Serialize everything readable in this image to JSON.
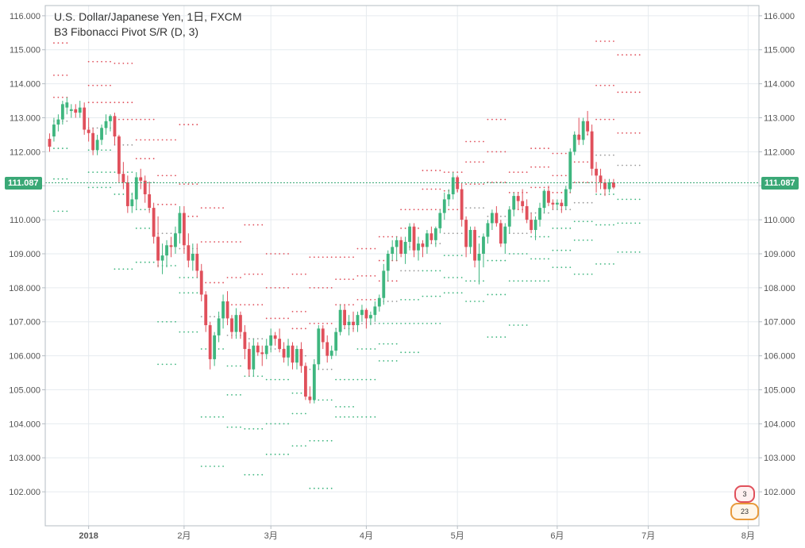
{
  "chart_title": "U.S. Dollar/Japanese Yen, 1日, FXCM",
  "indicator_title": "B3 Fibonacci Pivot S/R (D, 3)",
  "current_price": "111.087",
  "badges": {
    "top": "3",
    "bottom": "23"
  },
  "colors": {
    "up": "#3fb67f",
    "down": "#e0505b",
    "grid": "#e6ebef",
    "price_line": "#3aa876",
    "resistance_dot": "#e0505b",
    "support_dot": "#3fb67f",
    "pivot_dot": "#999999"
  },
  "chart_data": {
    "type": "candlestick",
    "title": "U.S. Dollar/Japanese Yen, 1日, FXCM",
    "subtitle": "B3 Fibonacci Pivot S/R (D, 3)",
    "y_axis": {
      "ticks": [
        "116.000",
        "115.000",
        "114.000",
        "113.000",
        "112.000",
        "111.000",
        "110.000",
        "109.000",
        "108.000",
        "107.000",
        "106.000",
        "105.000",
        "104.000",
        "103.000",
        "102.000"
      ],
      "range": [
        101.0,
        116.3
      ],
      "sides": "left-right",
      "current_value": 111.087
    },
    "x_axis": {
      "ticks": [
        {
          "label": "2018",
          "index": 9,
          "bold": true
        },
        {
          "label": "2月",
          "index": 31
        },
        {
          "label": "3月",
          "index": 51
        },
        {
          "label": "4月",
          "index": 73
        },
        {
          "label": "5月",
          "index": 94
        },
        {
          "label": "6月",
          "index": 117
        },
        {
          "label": "7月",
          "index": 138
        },
        {
          "label": "8月",
          "index": 161
        }
      ],
      "start_index": -1,
      "end_index": 163.5
    },
    "grid": true,
    "candles": [
      [
        112.38,
        112.54,
        112.0,
        112.15
      ],
      [
        112.45,
        113.0,
        112.3,
        112.8
      ],
      [
        112.8,
        113.1,
        112.6,
        112.95
      ],
      [
        112.95,
        113.5,
        112.8,
        113.4
      ],
      [
        113.3,
        113.6,
        113.1,
        113.45
      ],
      [
        113.2,
        113.4,
        113.0,
        113.25
      ],
      [
        113.25,
        113.4,
        113.0,
        113.15
      ],
      [
        113.15,
        113.5,
        113.0,
        113.3
      ],
      [
        113.3,
        113.45,
        112.5,
        112.65
      ],
      [
        112.65,
        113.0,
        112.3,
        112.55
      ],
      [
        112.55,
        112.7,
        111.9,
        112.05
      ],
      [
        112.05,
        112.5,
        111.9,
        112.35
      ],
      [
        112.35,
        112.8,
        112.2,
        112.7
      ],
      [
        112.7,
        113.1,
        112.5,
        112.9
      ],
      [
        112.9,
        113.1,
        112.6,
        113.05
      ],
      [
        113.05,
        113.15,
        112.2,
        112.45
      ],
      [
        112.45,
        112.5,
        111.1,
        111.35
      ],
      [
        111.35,
        111.7,
        110.9,
        111.1
      ],
      [
        111.1,
        111.3,
        110.2,
        110.4
      ],
      [
        110.4,
        110.8,
        110.2,
        110.6
      ],
      [
        110.6,
        111.4,
        110.3,
        111.25
      ],
      [
        111.25,
        111.5,
        110.9,
        111.15
      ],
      [
        111.15,
        111.3,
        110.5,
        110.75
      ],
      [
        110.75,
        111.1,
        110.2,
        110.35
      ],
      [
        110.35,
        110.5,
        109.3,
        109.5
      ],
      [
        109.5,
        110.1,
        108.6,
        108.8
      ],
      [
        108.8,
        109.3,
        108.4,
        108.95
      ],
      [
        108.95,
        109.4,
        108.6,
        109.25
      ],
      [
        109.25,
        109.5,
        108.9,
        109.2
      ],
      [
        109.2,
        109.8,
        109.0,
        109.6
      ],
      [
        109.6,
        110.4,
        109.3,
        110.2
      ],
      [
        110.2,
        110.4,
        109.0,
        109.25
      ],
      [
        109.25,
        109.6,
        108.6,
        108.8
      ],
      [
        108.8,
        109.3,
        108.5,
        109.0
      ],
      [
        109.0,
        109.3,
        108.3,
        108.5
      ],
      [
        108.5,
        108.7,
        107.6,
        107.8
      ],
      [
        107.8,
        107.9,
        106.7,
        106.9
      ],
      [
        106.9,
        107.0,
        105.6,
        105.9
      ],
      [
        105.9,
        106.7,
        105.7,
        106.6
      ],
      [
        106.6,
        107.3,
        106.4,
        107.1
      ],
      [
        107.1,
        107.8,
        106.8,
        107.6
      ],
      [
        107.6,
        107.9,
        106.9,
        107.1
      ],
      [
        107.1,
        107.2,
        106.5,
        106.7
      ],
      [
        106.7,
        107.4,
        106.5,
        107.2
      ],
      [
        107.2,
        107.3,
        106.5,
        106.7
      ],
      [
        106.7,
        106.9,
        105.9,
        106.2
      ],
      [
        106.2,
        106.4,
        105.4,
        105.6
      ],
      [
        105.6,
        106.5,
        105.4,
        106.3
      ],
      [
        106.3,
        106.4,
        106.0,
        106.1
      ],
      [
        106.1,
        106.3,
        105.7,
        106.05
      ],
      [
        106.05,
        106.5,
        105.9,
        106.3
      ],
      [
        106.3,
        106.8,
        106.1,
        106.6
      ],
      [
        106.6,
        106.7,
        106.3,
        106.5
      ],
      [
        106.5,
        106.8,
        106.1,
        106.2
      ],
      [
        106.2,
        106.4,
        105.8,
        105.95
      ],
      [
        105.95,
        106.5,
        105.7,
        106.3
      ],
      [
        106.3,
        106.4,
        105.6,
        105.8
      ],
      [
        105.8,
        106.3,
        105.6,
        106.2
      ],
      [
        106.2,
        106.4,
        105.5,
        105.7
      ],
      [
        105.7,
        105.8,
        104.7,
        104.8
      ],
      [
        104.8,
        105.1,
        104.6,
        104.7
      ],
      [
        104.7,
        105.9,
        104.6,
        105.75
      ],
      [
        105.75,
        106.9,
        105.6,
        106.8
      ],
      [
        106.8,
        106.9,
        106.2,
        106.4
      ],
      [
        106.4,
        106.6,
        105.8,
        106.0
      ],
      [
        106.0,
        106.3,
        105.9,
        106.15
      ],
      [
        106.15,
        106.8,
        106.0,
        106.7
      ],
      [
        106.7,
        107.5,
        106.6,
        107.35
      ],
      [
        107.35,
        107.5,
        106.8,
        106.9
      ],
      [
        106.9,
        107.2,
        106.6,
        107.0
      ],
      [
        107.0,
        107.3,
        106.7,
        106.9
      ],
      [
        106.9,
        107.3,
        106.7,
        107.2
      ],
      [
        107.2,
        107.5,
        107.0,
        107.35
      ],
      [
        107.35,
        107.4,
        106.8,
        107.1
      ],
      [
        107.1,
        107.3,
        106.9,
        107.2
      ],
      [
        107.2,
        107.6,
        107.0,
        107.45
      ],
      [
        107.45,
        107.8,
        107.3,
        107.7
      ],
      [
        107.7,
        108.7,
        107.5,
        108.5
      ],
      [
        108.5,
        109.1,
        108.2,
        109.0
      ],
      [
        109.0,
        109.4,
        108.8,
        109.2
      ],
      [
        109.2,
        109.5,
        108.8,
        109.4
      ],
      [
        109.4,
        109.5,
        108.9,
        109.0
      ],
      [
        109.0,
        109.5,
        108.7,
        109.35
      ],
      [
        109.35,
        109.9,
        109.1,
        109.8
      ],
      [
        109.8,
        109.9,
        108.9,
        109.1
      ],
      [
        109.1,
        109.5,
        108.8,
        109.3
      ],
      [
        109.3,
        109.4,
        108.9,
        109.2
      ],
      [
        109.2,
        109.7,
        109.0,
        109.6
      ],
      [
        109.6,
        109.8,
        109.3,
        109.4
      ],
      [
        109.4,
        109.8,
        109.2,
        109.75
      ],
      [
        109.75,
        110.3,
        109.6,
        110.2
      ],
      [
        110.2,
        110.8,
        110.0,
        110.6
      ],
      [
        110.6,
        110.9,
        110.4,
        110.75
      ],
      [
        110.75,
        111.4,
        110.6,
        111.25
      ],
      [
        111.25,
        111.3,
        110.8,
        110.9
      ],
      [
        110.9,
        111.1,
        109.8,
        110.0
      ],
      [
        110.0,
        110.1,
        108.9,
        109.2
      ],
      [
        109.2,
        109.8,
        109.0,
        109.7
      ],
      [
        109.7,
        109.8,
        108.6,
        108.8
      ],
      [
        108.8,
        109.3,
        108.1,
        109.0
      ],
      [
        109.0,
        109.6,
        108.6,
        109.5
      ],
      [
        109.5,
        110.0,
        109.3,
        109.9
      ],
      [
        109.9,
        110.3,
        109.7,
        110.2
      ],
      [
        110.2,
        110.4,
        109.8,
        109.9
      ],
      [
        109.9,
        110.0,
        109.2,
        109.3
      ],
      [
        109.3,
        109.9,
        109.0,
        109.8
      ],
      [
        109.8,
        110.4,
        109.6,
        110.3
      ],
      [
        110.3,
        110.8,
        110.1,
        110.7
      ],
      [
        110.7,
        110.8,
        110.3,
        110.55
      ],
      [
        110.55,
        110.9,
        110.2,
        110.4
      ],
      [
        110.4,
        110.6,
        109.9,
        110.0
      ],
      [
        110.0,
        110.2,
        109.6,
        109.7
      ],
      [
        109.7,
        110.1,
        109.4,
        110.0
      ],
      [
        110.0,
        110.5,
        109.8,
        110.35
      ],
      [
        110.35,
        110.9,
        110.2,
        110.85
      ],
      [
        110.85,
        111.0,
        110.4,
        110.5
      ],
      [
        110.5,
        110.6,
        110.3,
        110.45
      ],
      [
        110.45,
        110.6,
        110.3,
        110.5
      ],
      [
        110.5,
        110.6,
        110.2,
        110.4
      ],
      [
        110.4,
        111.0,
        110.3,
        110.9
      ],
      [
        110.9,
        112.1,
        110.8,
        112.0
      ],
      [
        112.0,
        112.6,
        111.9,
        112.5
      ],
      [
        112.5,
        113.0,
        112.2,
        112.35
      ],
      [
        112.35,
        113.0,
        112.2,
        112.9
      ],
      [
        112.9,
        113.2,
        112.5,
        112.6
      ],
      [
        112.6,
        112.8,
        111.3,
        111.5
      ],
      [
        111.5,
        111.7,
        110.8,
        111.3
      ],
      [
        111.3,
        111.5,
        110.9,
        111.1
      ],
      [
        111.1,
        111.2,
        110.7,
        110.9
      ],
      [
        110.9,
        111.2,
        110.8,
        111.1
      ],
      [
        111.1,
        111.2,
        110.9,
        110.95
      ]
    ],
    "pivot_levels": [
      {
        "from": 1,
        "to": 4,
        "r3": 115.2,
        "r2": 114.25,
        "r1": 113.6,
        "p": 112.9,
        "s1": 112.1,
        "s2": 111.2,
        "s3": 110.25
      },
      {
        "from": 9,
        "to": 14,
        "r3": 114.65,
        "r2": 113.95,
        "r1": 113.45,
        "p": 112.7,
        "s1": 112.05,
        "s2": 111.4,
        "s3": 110.95
      },
      {
        "from": 15,
        "to": 19,
        "r3": 114.6,
        "r2": 113.45,
        "r1": 112.95,
        "p": 112.2,
        "s1": 111.4,
        "s2": 110.75,
        "s3": 108.55
      },
      {
        "from": 20,
        "to": 24,
        "r3": 112.95,
        "r2": 112.35,
        "r1": 111.8,
        "p": 111.1,
        "s1": 110.3,
        "s2": 109.75,
        "s3": 108.75
      },
      {
        "from": 25,
        "to": 29,
        "r3": 112.35,
        "r2": 111.3,
        "r1": 110.45,
        "p": 109.6,
        "s1": 108.65,
        "s2": 107.0,
        "s3": 105.75
      },
      {
        "from": 30,
        "to": 34,
        "r3": 112.8,
        "r2": 111.05,
        "r1": 110.1,
        "p": 109.15,
        "s1": 108.3,
        "s2": 107.85,
        "s3": 106.7
      },
      {
        "from": 35,
        "to": 40,
        "r3": 110.35,
        "r2": 109.35,
        "r1": 108.15,
        "p": 107.15,
        "s1": 106.2,
        "s2": 104.2,
        "s3": 102.75
      },
      {
        "from": 41,
        "to": 44,
        "r3": 109.35,
        "r2": 108.3,
        "r1": 107.5,
        "p": 106.6,
        "s1": 105.7,
        "s2": 104.85,
        "s3": 103.9
      },
      {
        "from": 45,
        "to": 49,
        "r3": 109.85,
        "r2": 108.4,
        "r1": 107.5,
        "p": 106.5,
        "s1": 105.4,
        "s2": 103.85,
        "s3": 102.5
      },
      {
        "from": 50,
        "to": 55,
        "r3": 109.0,
        "r2": 108.0,
        "r1": 107.1,
        "p": 106.2,
        "s1": 105.3,
        "s2": 104.0,
        "s3": 103.1
      },
      {
        "from": 56,
        "to": 59,
        "r3": 108.4,
        "r2": 107.3,
        "r1": 106.8,
        "p": 106.0,
        "s1": 104.9,
        "s2": 104.3,
        "s3": 103.35
      },
      {
        "from": 60,
        "to": 65,
        "r3": 108.9,
        "r2": 108.0,
        "r1": 106.95,
        "p": 105.6,
        "s1": 104.7,
        "s2": 103.5,
        "s3": 102.1
      },
      {
        "from": 66,
        "to": 70,
        "r3": 108.9,
        "r2": 108.25,
        "r1": 107.5,
        "p": 106.8,
        "s1": 105.3,
        "s2": 104.2,
        "s3": 104.5
      },
      {
        "from": 71,
        "to": 75,
        "r3": 109.15,
        "r2": 108.35,
        "r1": 107.65,
        "p": 106.95,
        "s1": 106.2,
        "s2": 105.3,
        "s3": 104.2
      },
      {
        "from": 76,
        "to": 80,
        "r3": 109.5,
        "r2": 108.8,
        "r1": 108.2,
        "p": 107.6,
        "s1": 106.95,
        "s2": 106.35,
        "s3": 105.85
      },
      {
        "from": 81,
        "to": 85,
        "r3": 110.3,
        "r2": 109.75,
        "r1": 109.2,
        "p": 108.5,
        "s1": 107.65,
        "s2": 106.95,
        "s3": 106.1
      },
      {
        "from": 86,
        "to": 90,
        "r3": 111.45,
        "r2": 110.9,
        "r1": 110.3,
        "p": 109.3,
        "s1": 108.5,
        "s2": 107.75,
        "s3": 106.95
      },
      {
        "from": 91,
        "to": 95,
        "r3": 111.4,
        "r2": 110.85,
        "r1": 110.3,
        "p": 109.6,
        "s1": 108.95,
        "s2": 108.3,
        "s3": 107.85
      },
      {
        "from": 96,
        "to": 100,
        "r3": 112.3,
        "r2": 111.7,
        "r1": 111.05,
        "p": 110.35,
        "s1": 109.5,
        "s2": 108.2,
        "s3": 107.6
      },
      {
        "from": 101,
        "to": 105,
        "r3": 112.95,
        "r2": 112.0,
        "r1": 111.1,
        "p": 110.1,
        "s1": 108.8,
        "s2": 107.8,
        "s3": 106.55
      },
      {
        "from": 106,
        "to": 110,
        "r3": 111.4,
        "r2": 110.8,
        "r1": 110.3,
        "p": 109.6,
        "s1": 109.0,
        "s2": 108.2,
        "s3": 106.9
      },
      {
        "from": 111,
        "to": 115,
        "r3": 112.1,
        "r2": 111.55,
        "r1": 110.95,
        "p": 110.2,
        "s1": 109.5,
        "s2": 108.85,
        "s3": 108.2
      },
      {
        "from": 116,
        "to": 120,
        "r3": 111.95,
        "r2": 111.3,
        "r1": 110.8,
        "p": 110.3,
        "s1": 109.75,
        "s2": 109.1,
        "s3": 108.6
      },
      {
        "from": 121,
        "to": 125,
        "r3": 112.5,
        "r2": 111.7,
        "r1": 111.1,
        "p": 110.5,
        "s1": 109.95,
        "s2": 109.4,
        "s3": 108.4
      },
      {
        "from": 126,
        "to": 130,
        "r3": 115.25,
        "r2": 113.95,
        "r1": 112.95,
        "p": 111.9,
        "s1": 110.75,
        "s2": 109.85,
        "s3": 108.7
      },
      {
        "from": 131,
        "to": 136,
        "r3": 114.85,
        "r2": 113.75,
        "r1": 112.55,
        "p": 111.6,
        "s1": 110.6,
        "s2": 109.9,
        "s3": 109.05
      }
    ]
  }
}
